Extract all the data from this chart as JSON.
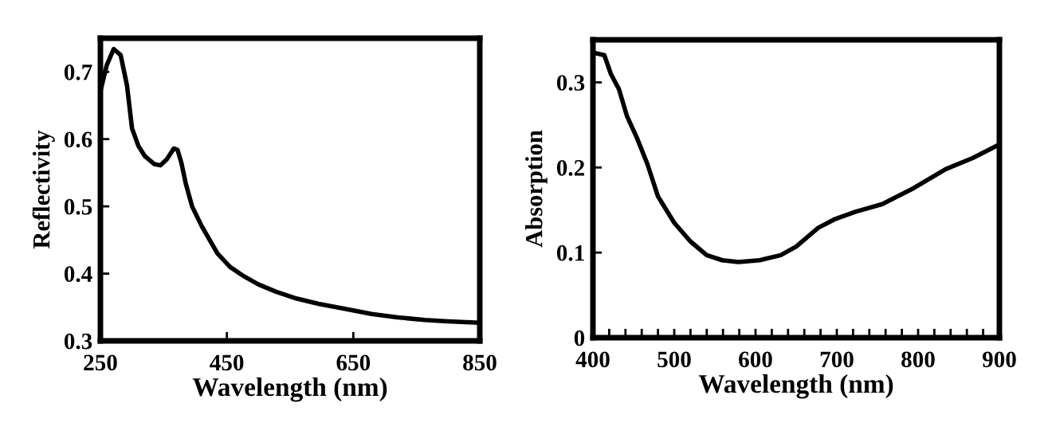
{
  "chart_data": [
    {
      "type": "line",
      "xlabel": "Wavelength (nm)",
      "ylabel": "Reflectivity",
      "xlim": [
        250,
        850
      ],
      "xticks": [
        250,
        450,
        650,
        850
      ],
      "ylim": [
        0.3,
        0.75
      ],
      "yticks": [
        0.3,
        0.4,
        0.5,
        0.6,
        0.7
      ],
      "grid": false,
      "legend": false,
      "marker": "none",
      "line_style": "solid",
      "series": [
        {
          "color": "#000000",
          "x": [
            250,
            260,
            271,
            282,
            292,
            300,
            310,
            320,
            335,
            345,
            355,
            362,
            366,
            372,
            378,
            385,
            395,
            410,
            435,
            455,
            477,
            500,
            528,
            560,
            595,
            640,
            679,
            720,
            763,
            800,
            847
          ],
          "values": [
            0.671,
            0.71,
            0.734,
            0.725,
            0.68,
            0.616,
            0.59,
            0.575,
            0.563,
            0.561,
            0.57,
            0.58,
            0.586,
            0.584,
            0.565,
            0.534,
            0.5,
            0.471,
            0.43,
            0.41,
            0.396,
            0.384,
            0.373,
            0.363,
            0.355,
            0.347,
            0.34,
            0.335,
            0.331,
            0.329,
            0.327
          ]
        }
      ]
    },
    {
      "type": "line",
      "xlabel": "Wavelength (nm)",
      "ylabel": "Absorption",
      "xlim": [
        400,
        900
      ],
      "xticks": [
        400,
        {
          "value": 420,
          "label": null
        },
        {
          "value": 440,
          "label": null
        },
        {
          "value": 460,
          "label": null
        },
        {
          "value": 480,
          "label": null
        },
        500,
        {
          "value": 520,
          "label": null
        },
        {
          "value": 540,
          "label": null
        },
        {
          "value": 560,
          "label": null
        },
        {
          "value": 580,
          "label": null
        },
        600,
        {
          "value": 620,
          "label": null
        },
        {
          "value": 640,
          "label": null
        },
        {
          "value": 660,
          "label": null
        },
        {
          "value": 680,
          "label": null
        },
        700,
        {
          "value": 720,
          "label": null
        },
        {
          "value": 740,
          "label": null
        },
        {
          "value": 760,
          "label": null
        },
        {
          "value": 780,
          "label": null
        },
        800,
        {
          "value": 820,
          "label": null
        },
        {
          "value": 840,
          "label": null
        },
        {
          "value": 860,
          "label": null
        },
        {
          "value": 880,
          "label": null
        },
        900
      ],
      "ylim": [
        0,
        0.35
      ],
      "yticks": [
        0,
        0.1,
        0.2,
        0.3
      ],
      "grid": false,
      "legend": false,
      "marker": "none",
      "line_style": "solid",
      "series": [
        {
          "color": "#000000",
          "x": [
            405,
            414,
            422,
            432,
            442,
            454,
            467,
            480,
            500,
            520,
            540,
            559,
            579,
            605,
            631,
            650,
            677,
            697,
            723,
            756,
            795,
            834,
            867,
            900
          ],
          "values": [
            0.334,
            0.332,
            0.31,
            0.292,
            0.26,
            0.235,
            0.204,
            0.166,
            0.135,
            0.113,
            0.097,
            0.091,
            0.089,
            0.091,
            0.097,
            0.107,
            0.129,
            0.139,
            0.148,
            0.157,
            0.176,
            0.198,
            0.211,
            0.227
          ]
        }
      ]
    }
  ]
}
